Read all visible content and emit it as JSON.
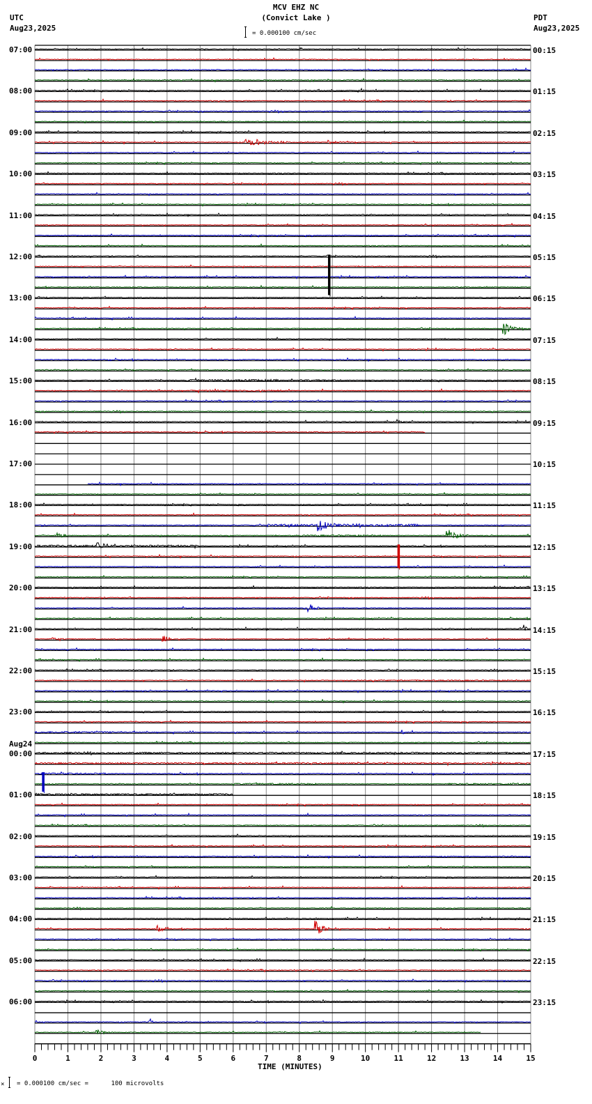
{
  "header": {
    "station": "MCV EHZ NC",
    "location": "(Convict Lake )",
    "left_tz": "UTC",
    "left_date": "Aug23,2025",
    "right_tz": "PDT",
    "right_date": "Aug23,2025",
    "scale_text": "= 0.000100 cm/sec"
  },
  "footer": {
    "scale_text": "= 0.000100 cm/sec =      100 microvolts",
    "prefix": "×"
  },
  "colors": {
    "trace_cycle": [
      "#000000",
      "#d00000",
      "#0000c0",
      "#006000"
    ],
    "grid": "#888888",
    "baseline": "#000000"
  },
  "chart_data": {
    "type": "line",
    "title": "MCV EHZ NC (Convict Lake ) helicorder",
    "xlabel": "TIME (MINUTES)",
    "ylabel": "",
    "x_ticks": [
      "0",
      "1",
      "2",
      "3",
      "4",
      "5",
      "6",
      "7",
      "8",
      "9",
      "10",
      "11",
      "12",
      "13",
      "14",
      "15"
    ],
    "xlim": [
      0,
      15
    ],
    "grid": true,
    "rows_per_hour": 4,
    "minutes_per_row": 15,
    "utc_labels": [
      {
        "row": 0,
        "text": "07:00"
      },
      {
        "row": 4,
        "text": "08:00"
      },
      {
        "row": 8,
        "text": "09:00"
      },
      {
        "row": 12,
        "text": "10:00"
      },
      {
        "row": 16,
        "text": "11:00"
      },
      {
        "row": 20,
        "text": "12:00"
      },
      {
        "row": 24,
        "text": "13:00"
      },
      {
        "row": 28,
        "text": "14:00"
      },
      {
        "row": 32,
        "text": "15:00"
      },
      {
        "row": 36,
        "text": "16:00"
      },
      {
        "row": 40,
        "text": "17:00"
      },
      {
        "row": 44,
        "text": "18:00"
      },
      {
        "row": 48,
        "text": "19:00"
      },
      {
        "row": 52,
        "text": "20:00"
      },
      {
        "row": 56,
        "text": "21:00"
      },
      {
        "row": 60,
        "text": "22:00"
      },
      {
        "row": 64,
        "text": "23:00"
      },
      {
        "row": 68,
        "text": "00:00",
        "date": "Aug24"
      },
      {
        "row": 72,
        "text": "01:00"
      },
      {
        "row": 76,
        "text": "02:00"
      },
      {
        "row": 80,
        "text": "03:00"
      },
      {
        "row": 84,
        "text": "04:00"
      },
      {
        "row": 88,
        "text": "05:00"
      },
      {
        "row": 92,
        "text": "06:00"
      }
    ],
    "pdt_labels": [
      {
        "row": 0,
        "text": "00:15"
      },
      {
        "row": 4,
        "text": "01:15"
      },
      {
        "row": 8,
        "text": "02:15"
      },
      {
        "row": 12,
        "text": "03:15"
      },
      {
        "row": 16,
        "text": "04:15"
      },
      {
        "row": 20,
        "text": "05:15"
      },
      {
        "row": 24,
        "text": "06:15"
      },
      {
        "row": 28,
        "text": "07:15"
      },
      {
        "row": 32,
        "text": "08:15"
      },
      {
        "row": 36,
        "text": "09:15"
      },
      {
        "row": 40,
        "text": "10:15"
      },
      {
        "row": 44,
        "text": "11:15"
      },
      {
        "row": 48,
        "text": "12:15"
      },
      {
        "row": 52,
        "text": "13:15"
      },
      {
        "row": 56,
        "text": "14:15"
      },
      {
        "row": 60,
        "text": "15:15"
      },
      {
        "row": 64,
        "text": "16:15"
      },
      {
        "row": 68,
        "text": "17:15"
      },
      {
        "row": 72,
        "text": "18:15"
      },
      {
        "row": 76,
        "text": "19:15"
      },
      {
        "row": 80,
        "text": "20:15"
      },
      {
        "row": 84,
        "text": "21:15"
      },
      {
        "row": 88,
        "text": "22:15"
      },
      {
        "row": 92,
        "text": "23:15"
      }
    ],
    "total_rows": 96,
    "gaps": [
      {
        "row": 38,
        "from_min": 0,
        "to_min": 15
      },
      {
        "row": 39,
        "from_min": 0,
        "to_min": 15
      },
      {
        "row": 40,
        "from_min": 0,
        "to_min": 15
      },
      {
        "row": 41,
        "from_min": 0,
        "to_min": 15
      },
      {
        "row": 42,
        "from_min": 0,
        "to_min": 1.6
      },
      {
        "row": 37,
        "from_min": 11.8,
        "to_min": 15
      },
      {
        "row": 72,
        "from_min": 6.0,
        "to_min": 15
      },
      {
        "row": 93,
        "from_min": 0,
        "to_min": 15
      },
      {
        "row": 95,
        "from_min": 13.5,
        "to_min": 15
      }
    ],
    "noisy_segments": [
      {
        "row": 32,
        "from_min": 4.6,
        "to_min": 7.4,
        "amp": 2.5
      },
      {
        "row": 32,
        "from_min": 8.0,
        "to_min": 9.2,
        "amp": 2
      },
      {
        "row": 33,
        "from_min": 4.7,
        "to_min": 7.5,
        "amp": 2
      },
      {
        "row": 46,
        "from_min": 7.0,
        "to_min": 11.6,
        "amp": 3
      },
      {
        "row": 47,
        "from_min": 8.0,
        "to_min": 10.5,
        "amp": 2
      },
      {
        "row": 48,
        "from_min": 0,
        "to_min": 5.0,
        "amp": 2.5
      },
      {
        "row": 66,
        "from_min": 0,
        "to_min": 2.4,
        "amp": 2
      },
      {
        "row": 68,
        "from_min": 0,
        "to_min": 15,
        "amp": 2
      },
      {
        "row": 69,
        "from_min": 0,
        "to_min": 15,
        "amp": 2
      },
      {
        "row": 70,
        "from_min": 0,
        "to_min": 2.2,
        "amp": 2
      },
      {
        "row": 71,
        "from_min": 6.0,
        "to_min": 8.5,
        "amp": 2
      },
      {
        "row": 71,
        "from_min": 12.5,
        "to_min": 15,
        "amp": 2
      },
      {
        "row": 72,
        "from_min": 0,
        "to_min": 6.0,
        "amp": 2
      },
      {
        "row": 61,
        "from_min": 9.5,
        "to_min": 15,
        "amp": 1.5
      }
    ],
    "events": [
      {
        "row": 9,
        "minute": 6.4,
        "amp": 6,
        "dur": 1.3
      },
      {
        "row": 9,
        "minute": 8.9,
        "amp": 3,
        "dur": 0.5
      },
      {
        "row": 20,
        "minute": 8.9,
        "amp": 58,
        "dur": 0.1,
        "spike": true
      },
      {
        "row": 27,
        "minute": 14.2,
        "amp": 10,
        "dur": 0.4
      },
      {
        "row": 38,
        "minute": 9.8,
        "amp": 4,
        "dur": 0.3
      },
      {
        "row": 38,
        "minute": 11.5,
        "amp": 8,
        "dur": 0.2
      },
      {
        "row": 46,
        "minute": 8.6,
        "amp": 10,
        "dur": 0.5
      },
      {
        "row": 47,
        "minute": 12.5,
        "amp": 9,
        "dur": 0.6
      },
      {
        "row": 47,
        "minute": 0.7,
        "amp": 5,
        "dur": 0.3
      },
      {
        "row": 48,
        "minute": 1.9,
        "amp": 8,
        "dur": 0.4
      },
      {
        "row": 48,
        "minute": 11.0,
        "amp": 34,
        "dur": 0.05,
        "spike": true,
        "color_row": 45
      },
      {
        "row": 54,
        "minute": 8.3,
        "amp": 6,
        "dur": 0.4
      },
      {
        "row": 57,
        "minute": 3.9,
        "amp": 6,
        "dur": 0.3
      },
      {
        "row": 57,
        "minute": 0.5,
        "amp": 3,
        "dur": 0.5
      },
      {
        "row": 56,
        "minute": 14.8,
        "amp": 6,
        "dur": 0.1
      },
      {
        "row": 66,
        "minute": 11.1,
        "amp": 4,
        "dur": 0.2
      },
      {
        "row": 70,
        "minute": 0.25,
        "amp": 28,
        "dur": 0.03,
        "spike": true
      },
      {
        "row": 85,
        "minute": 3.7,
        "amp": 5,
        "dur": 0.3
      },
      {
        "row": 85,
        "minute": 8.5,
        "amp": 14,
        "dur": 0.4
      },
      {
        "row": 92,
        "minute": 8.7,
        "amp": 5,
        "dur": 0.1
      },
      {
        "row": 94,
        "minute": 3.5,
        "amp": 6,
        "dur": 0.1
      },
      {
        "row": 95,
        "minute": 1.9,
        "amp": 4,
        "dur": 0.4
      },
      {
        "row": 36,
        "minute": 11.0,
        "amp": 3,
        "dur": 0.2
      },
      {
        "row": 4,
        "minute": 9.9,
        "amp": 4,
        "dur": 0.05
      }
    ]
  }
}
